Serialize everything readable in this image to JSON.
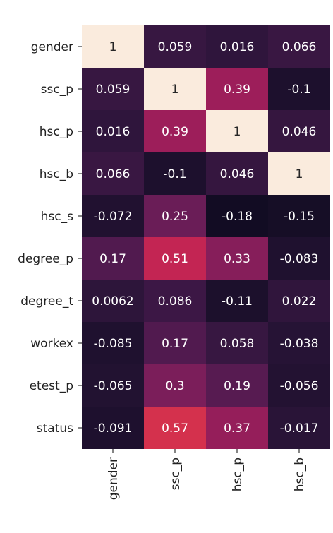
{
  "chart_data": {
    "type": "heatmap",
    "rows": [
      "gender",
      "ssc_p",
      "hsc_p",
      "hsc_b",
      "hsc_s",
      "degree_p",
      "degree_t",
      "workex",
      "etest_p",
      "status"
    ],
    "columns": [
      "gender",
      "ssc_p",
      "hsc_p",
      "hsc_b"
    ],
    "values": [
      [
        1,
        0.059,
        0.016,
        0.066
      ],
      [
        0.059,
        1,
        0.39,
        -0.1
      ],
      [
        0.016,
        0.39,
        1,
        0.046
      ],
      [
        0.066,
        -0.1,
        0.046,
        1
      ],
      [
        -0.072,
        0.25,
        -0.18,
        -0.15
      ],
      [
        0.17,
        0.51,
        0.33,
        -0.083
      ],
      [
        0.0062,
        0.086,
        -0.11,
        0.022
      ],
      [
        -0.085,
        0.17,
        0.058,
        -0.038
      ],
      [
        -0.065,
        0.3,
        0.19,
        -0.056
      ],
      [
        -0.091,
        0.57,
        0.37,
        -0.017
      ]
    ],
    "labels": [
      [
        "1",
        "0.059",
        "0.016",
        "0.066"
      ],
      [
        "0.059",
        "1",
        "0.39",
        "-0.1"
      ],
      [
        "0.016",
        "0.39",
        "1",
        "0.046"
      ],
      [
        "0.066",
        "-0.1",
        "0.046",
        "1"
      ],
      [
        "-0.072",
        "0.25",
        "-0.18",
        "-0.15"
      ],
      [
        "0.17",
        "0.51",
        "0.33",
        "-0.083"
      ],
      [
        "0.0062",
        "0.086",
        "-0.11",
        "0.022"
      ],
      [
        "-0.085",
        "0.17",
        "0.058",
        "-0.038"
      ],
      [
        "-0.065",
        "0.3",
        "0.19",
        "-0.056"
      ],
      [
        "-0.091",
        "0.57",
        "0.37",
        "-0.017"
      ]
    ],
    "colormap": "rocket",
    "value_range": [
      -0.2,
      1
    ],
    "colors": {
      "low": "#0f0b20",
      "mid_low": "#3b1a4a",
      "mid": "#7a1f5c",
      "mid_high": "#c7245a",
      "high": "#f0553e",
      "max": "#faebdd"
    }
  }
}
